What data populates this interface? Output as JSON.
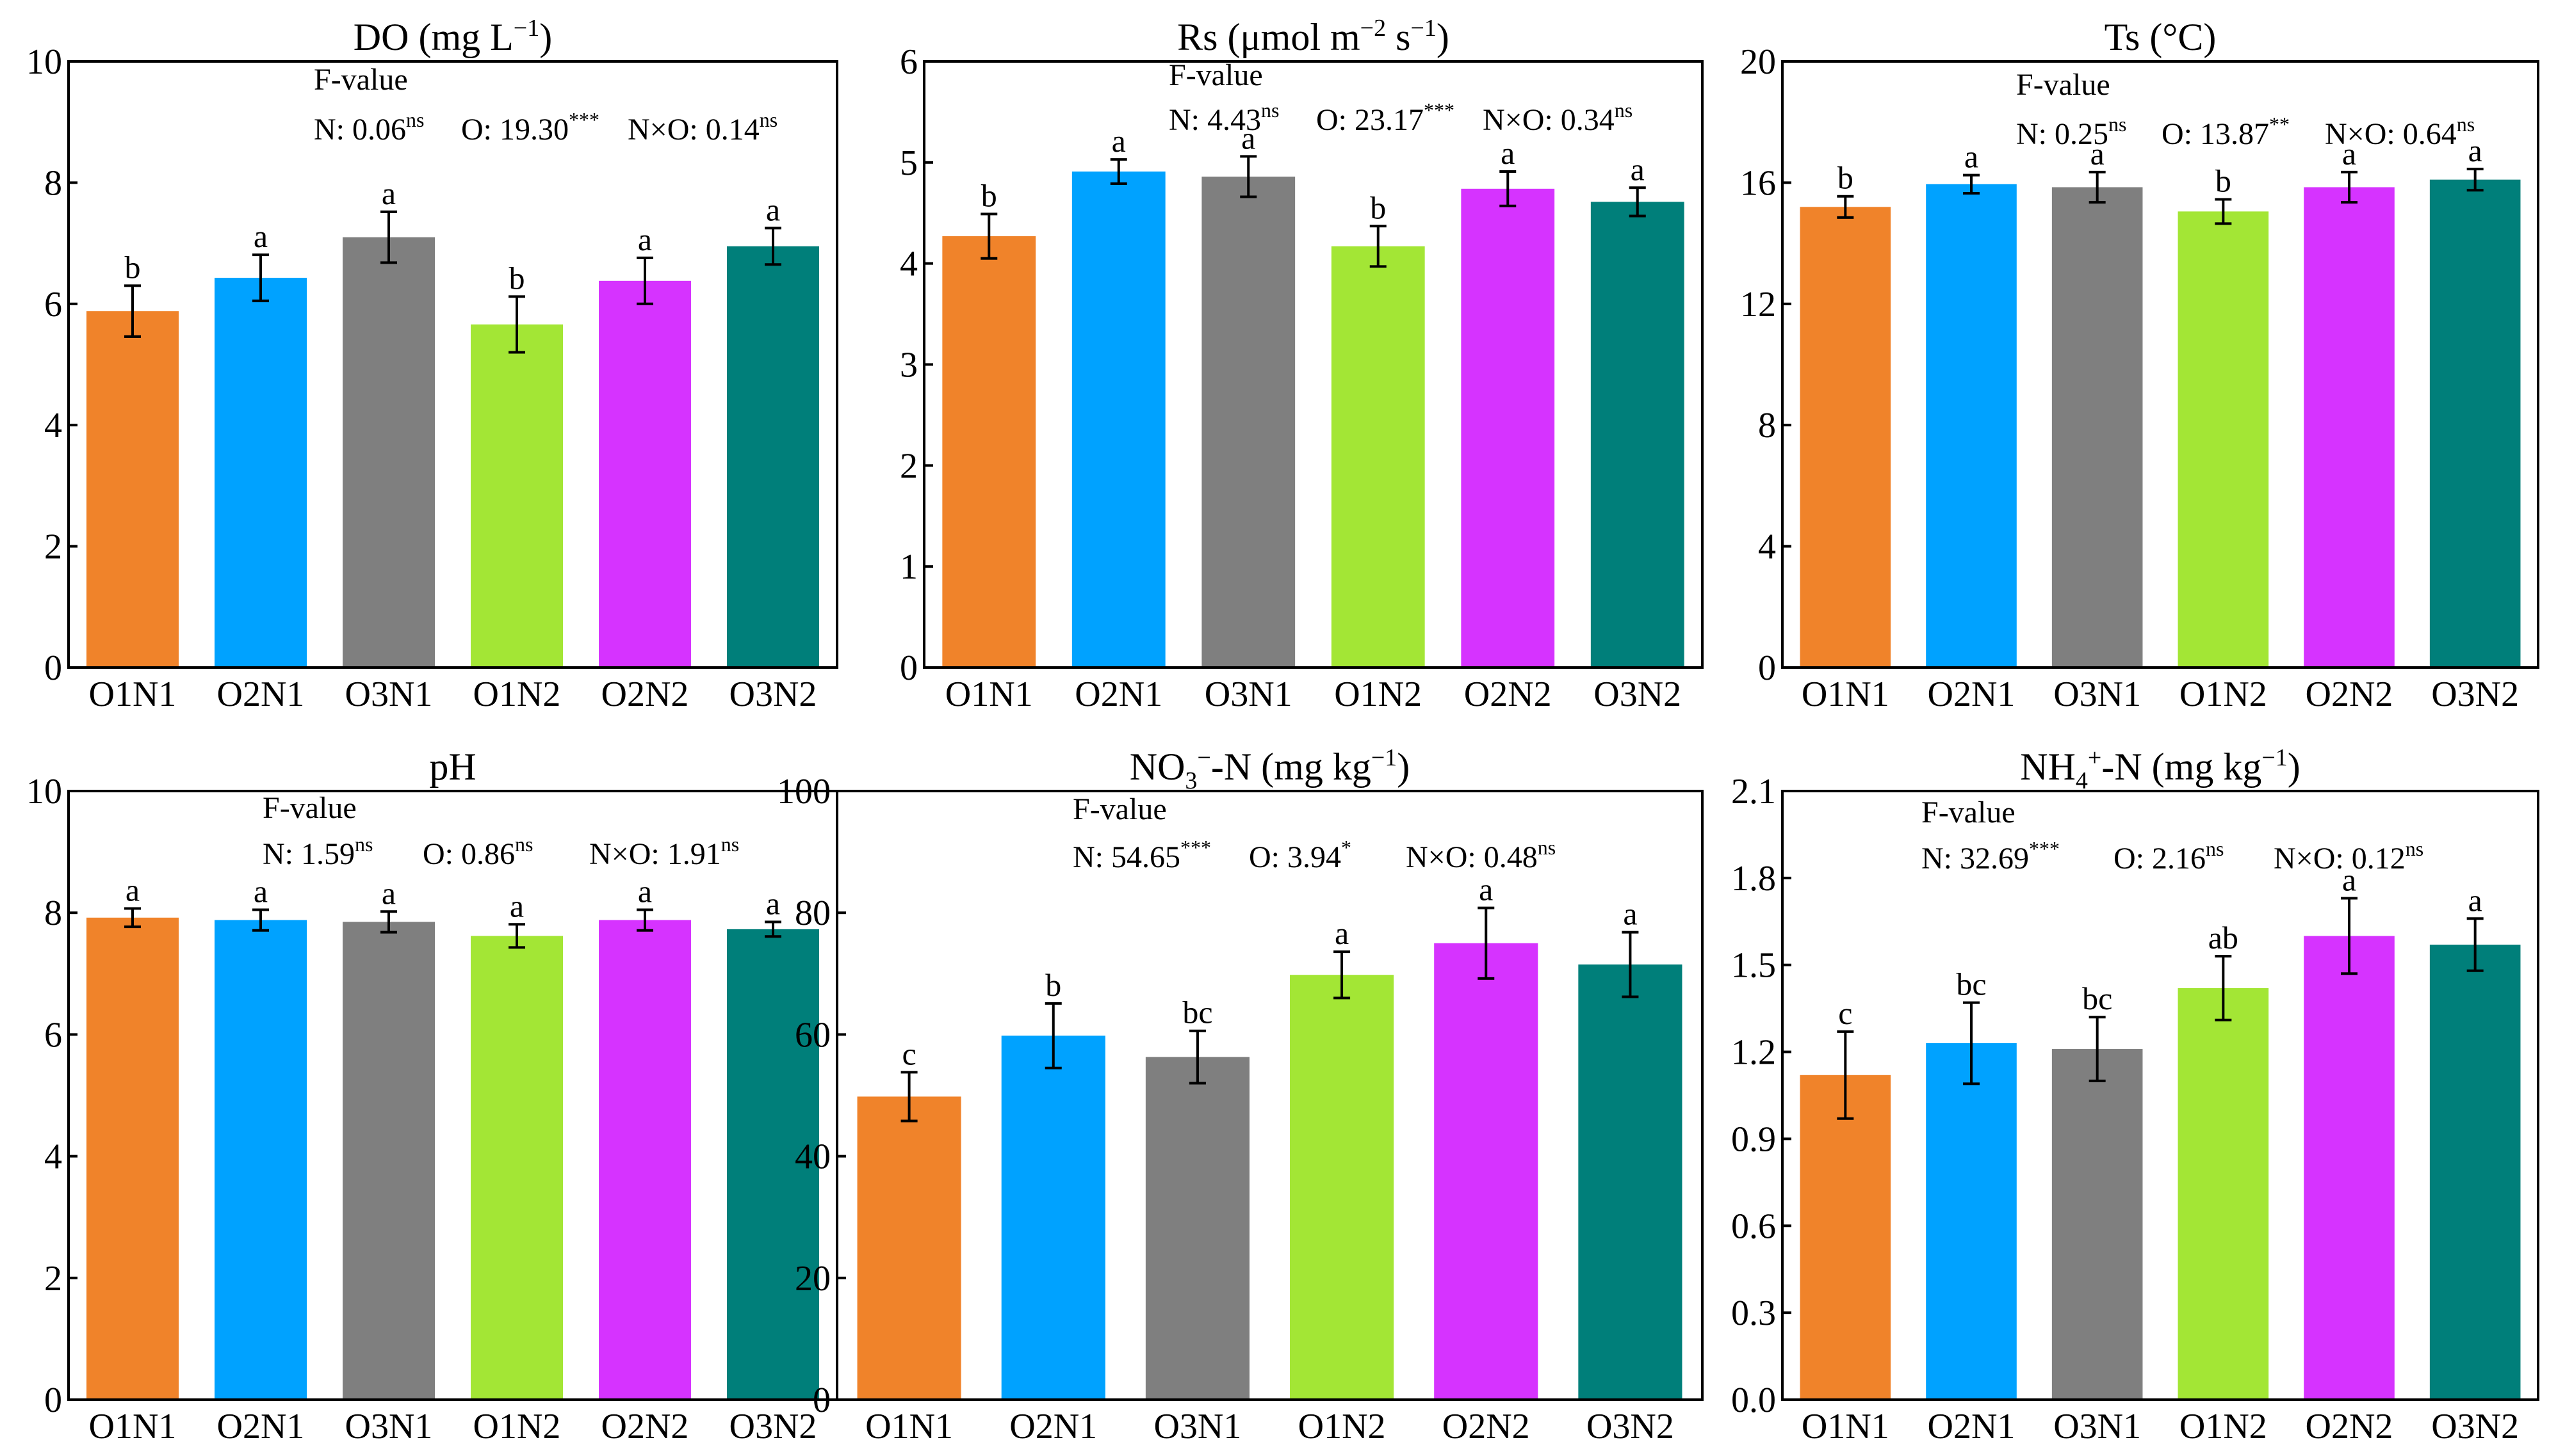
{
  "chart_data": [
    {
      "type": "bar",
      "title_parts": [
        {
          "t": "DO (mg L"
        },
        {
          "t": "−1",
          "sup": true
        },
        {
          "t": ")"
        }
      ],
      "categories": [
        "O1N1",
        "O2N1",
        "O3N1",
        "O1N2",
        "O2N2",
        "O3N2"
      ],
      "values": [
        5.88,
        6.43,
        7.1,
        5.66,
        6.38,
        6.95
      ],
      "errors": [
        0.42,
        0.38,
        0.42,
        0.46,
        0.38,
        0.3
      ],
      "letters": [
        "b",
        "a",
        "a",
        "b",
        "a",
        "a"
      ],
      "ylim": [
        0,
        10
      ],
      "yticks": [
        "0",
        "2",
        "4",
        "6",
        "8",
        "10"
      ],
      "fvalue_label": "F-value",
      "stats": [
        {
          "label": "N: 0.06",
          "sig": "ns"
        },
        {
          "label": "O: 19.30",
          "sig": "***"
        },
        {
          "label": "N×O: 0.14",
          "sig": "ns"
        }
      ]
    },
    {
      "type": "bar",
      "title_parts": [
        {
          "t": "Rs (μmol m"
        },
        {
          "t": "−2",
          "sup": true
        },
        {
          "t": " s"
        },
        {
          "t": "−1",
          "sup": true
        },
        {
          "t": ")"
        }
      ],
      "categories": [
        "O1N1",
        "O2N1",
        "O3N1",
        "O1N2",
        "O2N2",
        "O3N2"
      ],
      "values": [
        4.27,
        4.91,
        4.86,
        4.17,
        4.74,
        4.61
      ],
      "errors": [
        0.22,
        0.12,
        0.2,
        0.2,
        0.17,
        0.14
      ],
      "letters": [
        "b",
        "a",
        "a",
        "b",
        "a",
        "a"
      ],
      "ylim": [
        0,
        6
      ],
      "yticks": [
        "0",
        "1",
        "2",
        "3",
        "4",
        "5",
        "6"
      ],
      "fvalue_label": "F-value",
      "stats": [
        {
          "label": "N: 4.43",
          "sig": "ns"
        },
        {
          "label": "O: 23.17",
          "sig": "***"
        },
        {
          "label": "N×O: 0.34",
          "sig": "ns"
        }
      ]
    },
    {
      "type": "bar",
      "title_parts": [
        {
          "t": "Ts (°C)"
        }
      ],
      "categories": [
        "O1N1",
        "O2N1",
        "O3N1",
        "O1N2",
        "O2N2",
        "O3N2"
      ],
      "values": [
        15.2,
        15.95,
        15.85,
        15.05,
        15.85,
        16.1
      ],
      "errors": [
        0.35,
        0.3,
        0.5,
        0.4,
        0.5,
        0.35
      ],
      "letters": [
        "b",
        "a",
        "a",
        "b",
        "a",
        "a"
      ],
      "ylim": [
        0,
        20
      ],
      "yticks": [
        "0",
        "4",
        "8",
        "12",
        "16",
        "20"
      ],
      "fvalue_label": "F-value",
      "stats": [
        {
          "label": "N: 0.25",
          "sig": "ns"
        },
        {
          "label": "O: 13.87",
          "sig": "**"
        },
        {
          "label": "N×O: 0.64",
          "sig": "ns"
        }
      ]
    },
    {
      "type": "bar",
      "title_parts": [
        {
          "t": "pH"
        }
      ],
      "categories": [
        "O1N1",
        "O2N1",
        "O3N1",
        "O1N2",
        "O2N2",
        "O3N2"
      ],
      "values": [
        7.92,
        7.88,
        7.85,
        7.62,
        7.88,
        7.73
      ],
      "errors": [
        0.15,
        0.17,
        0.17,
        0.19,
        0.17,
        0.12
      ],
      "letters": [
        "a",
        "a",
        "a",
        "a",
        "a",
        "a"
      ],
      "ylim": [
        0,
        10
      ],
      "yticks": [
        "0",
        "2",
        "4",
        "6",
        "8",
        "10"
      ],
      "fvalue_label": "F-value",
      "stats": [
        {
          "label": "N: 1.59",
          "sig": "ns"
        },
        {
          "label": "O: 0.86",
          "sig": "ns"
        },
        {
          "label": "N×O: 1.91",
          "sig": "ns"
        }
      ]
    },
    {
      "type": "bar",
      "title_parts": [
        {
          "t": "NO"
        },
        {
          "t": "3",
          "sub": true
        },
        {
          "t": "−",
          "sup": true
        },
        {
          "t": "-N (mg kg"
        },
        {
          "t": "−1",
          "sup": true
        },
        {
          "t": ")"
        }
      ],
      "categories": [
        "O1N1",
        "O2N1",
        "O3N1",
        "O1N2",
        "O2N2",
        "O3N2"
      ],
      "values": [
        49.8,
        59.8,
        56.3,
        69.8,
        75.0,
        71.5
      ],
      "errors": [
        4.0,
        5.3,
        4.3,
        3.8,
        5.8,
        5.3
      ],
      "letters": [
        "c",
        "b",
        "bc",
        "a",
        "a",
        "a"
      ],
      "ylim": [
        0,
        100
      ],
      "yticks": [
        "0",
        "20",
        "40",
        "60",
        "80",
        "100"
      ],
      "fvalue_label": "F-value",
      "stats": [
        {
          "label": "N: 54.65",
          "sig": "***"
        },
        {
          "label": "O: 3.94",
          "sig": "*"
        },
        {
          "label": "N×O: 0.48",
          "sig": "ns"
        }
      ]
    },
    {
      "type": "bar",
      "title_parts": [
        {
          "t": "NH"
        },
        {
          "t": "4",
          "sub": true
        },
        {
          "t": "+",
          "sup": true
        },
        {
          "t": "-N (mg kg"
        },
        {
          "t": "−1",
          "sup": true
        },
        {
          "t": ")"
        }
      ],
      "categories": [
        "O1N1",
        "O2N1",
        "O3N1",
        "O1N2",
        "O2N2",
        "O3N2"
      ],
      "values": [
        1.12,
        1.23,
        1.21,
        1.42,
        1.6,
        1.57
      ],
      "errors": [
        0.15,
        0.14,
        0.11,
        0.11,
        0.13,
        0.09
      ],
      "letters": [
        "c",
        "bc",
        "bc",
        "ab",
        "a",
        "a"
      ],
      "ylim": [
        0,
        2.1
      ],
      "yticks": [
        "0.0",
        "0.3",
        "0.6",
        "0.9",
        "1.2",
        "1.5",
        "1.8",
        "2.1"
      ],
      "fvalue_label": "F-value",
      "stats": [
        {
          "label": "N: 32.69",
          "sig": "***"
        },
        {
          "label": "O: 2.16",
          "sig": "ns"
        },
        {
          "label": "N×O: 0.12",
          "sig": "ns"
        }
      ]
    }
  ],
  "colors": [
    "#f0832a",
    "#00a2ff",
    "#7f7f7f",
    "#a3e635",
    "#d633ff",
    "#007f7a"
  ]
}
